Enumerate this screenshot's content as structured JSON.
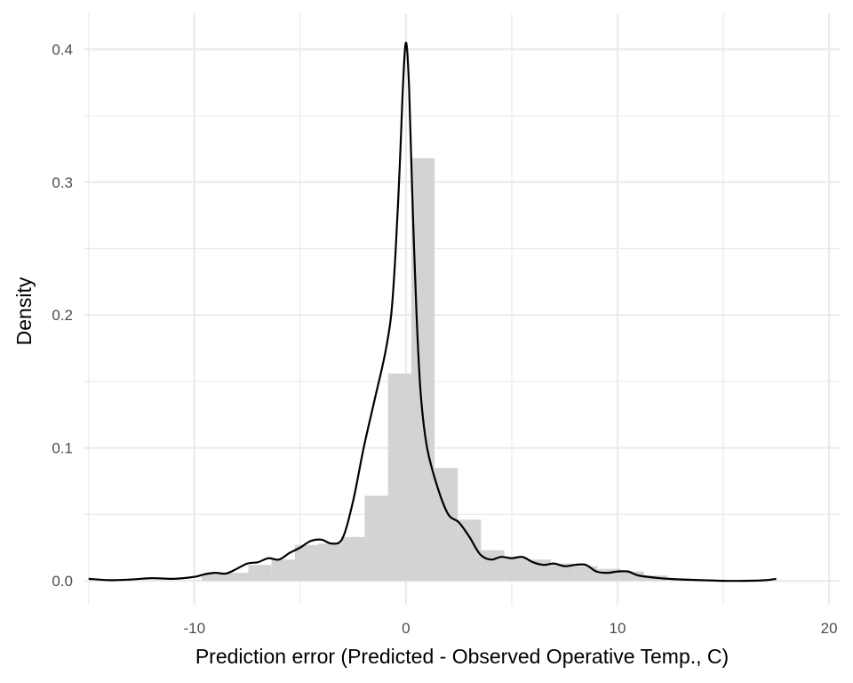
{
  "chart_data": {
    "type": "bar",
    "overlay": "density-line",
    "xlabel": "Prediction error (Predicted - Observed Operative Temp., C)",
    "ylabel": "Density",
    "xlim": [
      -15.2,
      20.5
    ],
    "ylim": [
      -0.018,
      0.427
    ],
    "x_ticks": [
      -10,
      0,
      10,
      20
    ],
    "y_ticks": [
      0.0,
      0.1,
      0.2,
      0.3,
      0.4
    ],
    "x_tick_labels": [
      "-10",
      "0",
      "10",
      "20"
    ],
    "y_tick_labels": [
      "0.0",
      "0.1",
      "0.2",
      "0.3",
      "0.4"
    ],
    "grid": true,
    "bin_width": 1.1,
    "histogram": [
      {
        "start": -9.65,
        "value": 0.005
      },
      {
        "start": -8.55,
        "value": 0.006
      },
      {
        "start": -7.45,
        "value": 0.012
      },
      {
        "start": -6.35,
        "value": 0.016
      },
      {
        "start": -5.25,
        "value": 0.027
      },
      {
        "start": -4.15,
        "value": 0.028
      },
      {
        "start": -3.05,
        "value": 0.033
      },
      {
        "start": -1.95,
        "value": 0.064
      },
      {
        "start": -0.85,
        "value": 0.156
      },
      {
        "start": 0.25,
        "value": 0.318
      },
      {
        "start": 1.35,
        "value": 0.085
      },
      {
        "start": 2.45,
        "value": 0.046
      },
      {
        "start": 3.55,
        "value": 0.023
      },
      {
        "start": 4.65,
        "value": 0.018
      },
      {
        "start": 5.75,
        "value": 0.016
      },
      {
        "start": 6.85,
        "value": 0.013
      },
      {
        "start": 7.95,
        "value": 0.011
      },
      {
        "start": 9.05,
        "value": 0.009
      },
      {
        "start": 10.15,
        "value": 0.007
      },
      {
        "start": 11.25,
        "value": 0.004
      },
      {
        "start": 12.35,
        "value": 0.002
      }
    ],
    "density_curve": {
      "x": [
        -15.0,
        -14.0,
        -13.0,
        -12.0,
        -11.0,
        -10.0,
        -9.5,
        -9.0,
        -8.5,
        -8.0,
        -7.5,
        -7.0,
        -6.5,
        -6.0,
        -5.5,
        -5.0,
        -4.5,
        -4.0,
        -3.5,
        -3.0,
        -2.5,
        -2.0,
        -1.5,
        -1.0,
        -0.7,
        -0.5,
        -0.3,
        -0.15,
        0.0,
        0.15,
        0.3,
        0.5,
        0.7,
        1.0,
        1.5,
        2.0,
        2.5,
        3.0,
        3.5,
        4.0,
        4.5,
        5.0,
        5.5,
        6.0,
        6.5,
        7.0,
        7.5,
        8.0,
        8.5,
        9.0,
        9.5,
        10.0,
        10.5,
        11.0,
        12.0,
        13.0,
        14.0,
        15.0,
        16.0,
        17.0,
        17.5
      ],
      "y": [
        0.0015,
        0.0005,
        0.001,
        0.002,
        0.0015,
        0.003,
        0.005,
        0.006,
        0.0055,
        0.009,
        0.013,
        0.014,
        0.017,
        0.016,
        0.021,
        0.025,
        0.03,
        0.031,
        0.028,
        0.032,
        0.06,
        0.1,
        0.135,
        0.17,
        0.2,
        0.245,
        0.31,
        0.37,
        0.405,
        0.37,
        0.29,
        0.2,
        0.14,
        0.1,
        0.07,
        0.05,
        0.044,
        0.033,
        0.02,
        0.016,
        0.018,
        0.017,
        0.018,
        0.014,
        0.012,
        0.013,
        0.011,
        0.012,
        0.012,
        0.007,
        0.006,
        0.007,
        0.007,
        0.004,
        0.002,
        0.001,
        0.0005,
        0.0,
        0.0,
        0.0005,
        0.0015
      ]
    },
    "colors": {
      "bar_fill": "#d3d3d3",
      "line": "#000000",
      "grid": "#ebebeb",
      "tick_text": "#4d4d4d",
      "background": "#ffffff"
    }
  }
}
